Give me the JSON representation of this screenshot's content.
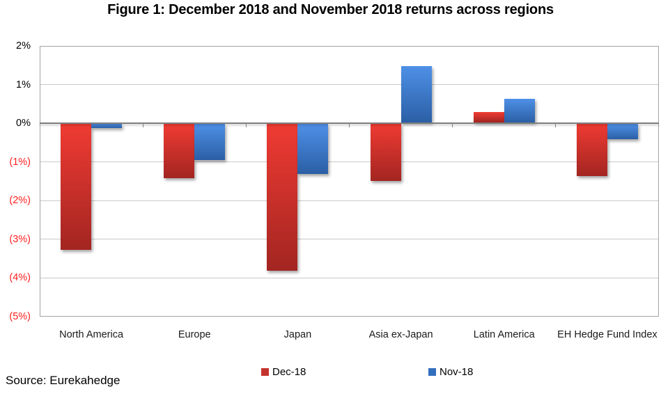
{
  "title": "Figure 1: December 2018 and November 2018 returns across regions",
  "source": "Source: Eurekahedge",
  "legend": [
    {
      "label": "Dec-18",
      "color": "#C4332D"
    },
    {
      "label": "Nov-18",
      "color": "#336FBE"
    }
  ],
  "colors": {
    "dec_top": "#EF3B33",
    "dec_bottom": "#A32521",
    "nov_top": "#4E90E7",
    "nov_bottom": "#2B5FA5",
    "gridline": "#C9C9C9",
    "zero_axis": "#7F7F7F",
    "negative_tick_label": "#FF1F1F"
  },
  "chart_data": {
    "type": "bar",
    "title": "Figure 1: December 2018 and November 2018 returns across regions",
    "categories": [
      "North America",
      "Europe",
      "Japan",
      "Asia ex-Japan",
      "Latin America",
      "EH Hedge Fund Index"
    ],
    "series": [
      {
        "name": "Dec-18",
        "values": [
          -3.25,
          -1.41,
          -3.8,
          -1.47,
          0.27,
          -1.35
        ]
      },
      {
        "name": "Nov-18",
        "values": [
          -0.11,
          -0.93,
          -1.3,
          1.46,
          0.61,
          -0.4
        ]
      }
    ],
    "xlabel": "",
    "ylabel": "",
    "ylim": [
      -5,
      2
    ],
    "yticks": [
      {
        "label": "2%",
        "value": 2
      },
      {
        "label": "1%",
        "value": 1
      },
      {
        "label": "0%",
        "value": 0
      },
      {
        "label": "(1%)",
        "value": -1
      },
      {
        "label": "(2%)",
        "value": -2
      },
      {
        "label": "(3%)",
        "value": -3
      },
      {
        "label": "(4%)",
        "value": -4
      },
      {
        "label": "(5%)",
        "value": -5
      }
    ],
    "grid": true,
    "legend_position": "bottom"
  }
}
